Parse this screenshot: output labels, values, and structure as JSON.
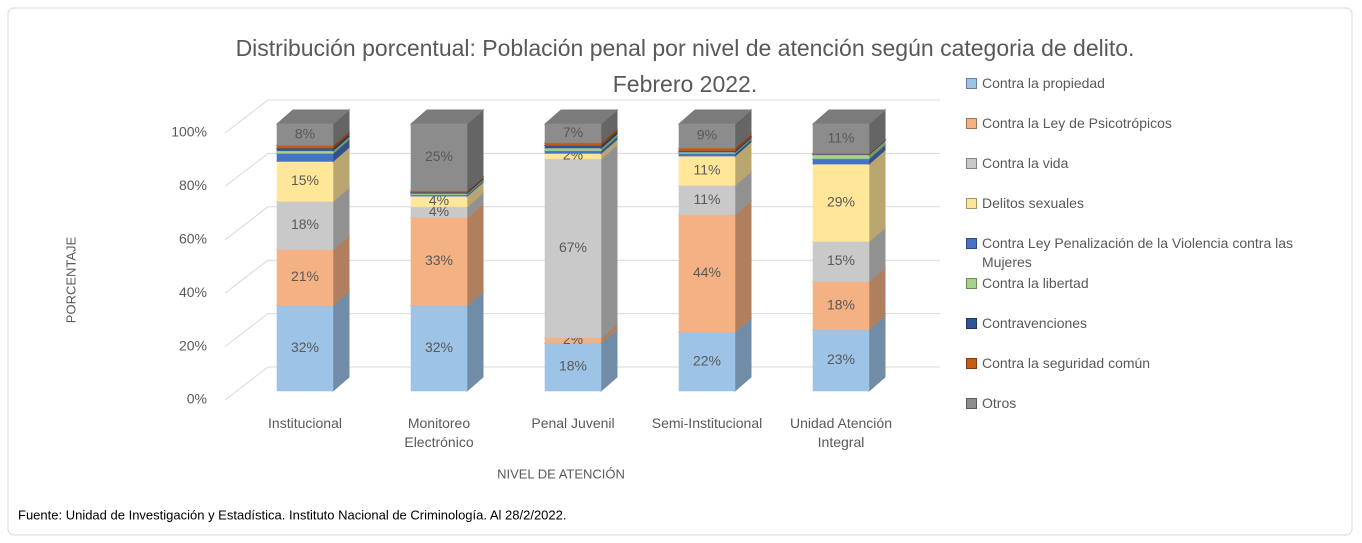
{
  "chart_data": {
    "type": "bar",
    "stacked": true,
    "title": [
      "Distribución porcentual: Población penal por nivel de atención según categoria de delito.",
      "Febrero 2022."
    ],
    "x_label": "NIVEL DE ATENCIÓN",
    "y_label": "PORCENTAJE",
    "source": "Fuente: Unidad de Investigación y Estadística. Instituto Nacional de Criminología. Al 28/2/2022.",
    "categories": [
      "Institucional",
      "Monitoreo Electrónico",
      "Penal Juvenil",
      "Semi-Institucional",
      "Unidad Atención Integral"
    ],
    "ylim": [
      0,
      100
    ],
    "yticks": [
      {
        "value": 0,
        "label": "0%"
      },
      {
        "value": 20,
        "label": "20%"
      },
      {
        "value": 40,
        "label": "40%"
      },
      {
        "value": 60,
        "label": "60%"
      },
      {
        "value": 80,
        "label": "80%"
      },
      {
        "value": 100,
        "label": "100%"
      }
    ],
    "grid": true,
    "legend": "right",
    "series": [
      {
        "name": "Contra la propiedad",
        "color": "#9dc3e6",
        "values": [
          32,
          32,
          18,
          22,
          23
        ],
        "value_labels": [
          "32%",
          "32%",
          "18%",
          "22%",
          "23%"
        ]
      },
      {
        "name": "Contra la Ley de Psicotrópicos",
        "color": "#f4b183",
        "values": [
          21,
          33,
          2,
          44,
          18
        ],
        "value_labels": [
          "21%",
          "33%",
          "2%",
          "44%",
          "18%"
        ]
      },
      {
        "name": "Contra la vida",
        "color": "#c9c9c9",
        "values": [
          18,
          4,
          67,
          11,
          15
        ],
        "value_labels": [
          "18%",
          "4%",
          "67%",
          "11%",
          "15%"
        ]
      },
      {
        "name": "Delitos sexuales",
        "color": "#ffe699",
        "values": [
          15,
          4,
          2,
          11,
          29
        ],
        "value_labels": [
          "15%",
          "4%",
          "2%",
          "11%",
          "29%"
        ]
      },
      {
        "name": "Contra Ley Penalización de la Violencia contra las Mujeres",
        "color": "#4472c4",
        "values": [
          3,
          0.5,
          1,
          1,
          2
        ],
        "value_labels": [
          null,
          null,
          null,
          null,
          null
        ]
      },
      {
        "name": "Contra la libertad",
        "color": "#a9d18e",
        "values": [
          1,
          0.5,
          1,
          0.5,
          1.5
        ],
        "value_labels": [
          null,
          null,
          null,
          null,
          null
        ]
      },
      {
        "name": "Contravenciones",
        "color": "#2f5597",
        "values": [
          1,
          0.5,
          1,
          0.5,
          0.3
        ],
        "value_labels": [
          null,
          null,
          null,
          null,
          null
        ]
      },
      {
        "name": "Contra la seguridad común",
        "color": "#c55a11",
        "values": [
          1,
          0.5,
          1,
          1,
          0.2
        ],
        "value_labels": [
          null,
          null,
          null,
          null,
          null
        ]
      },
      {
        "name": "Otros",
        "color": "#8c8c8c",
        "values": [
          8,
          25,
          7,
          9,
          11
        ],
        "value_labels": [
          "8%",
          "25%",
          "7%",
          "9%",
          "11%"
        ]
      }
    ]
  }
}
